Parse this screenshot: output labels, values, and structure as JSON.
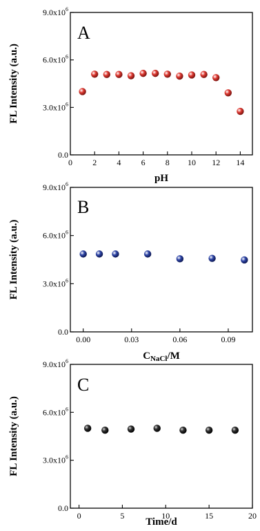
{
  "chart_data": [
    {
      "type": "scatter",
      "panel_label": "A",
      "xlabel": "pH",
      "ylabel": "FL Intensity (a.u.)",
      "xlim": [
        0,
        15
      ],
      "ylim": [
        0,
        9000000
      ],
      "xticks": [
        "0",
        "2",
        "4",
        "6",
        "8",
        "10",
        "12",
        "14"
      ],
      "xtick_values": [
        0,
        2,
        4,
        6,
        8,
        10,
        12,
        14
      ],
      "yticks": [
        {
          "mantissa": "0.0",
          "exp": ""
        },
        {
          "mantissa": "3.0x10",
          "exp": "6"
        },
        {
          "mantissa": "6.0x10",
          "exp": "6"
        },
        {
          "mantissa": "9.0x10",
          "exp": "6"
        }
      ],
      "ytick_values": [
        0,
        3000000,
        6000000,
        9000000
      ],
      "marker_color": "#e03a32",
      "x": [
        1,
        2,
        3,
        4,
        5,
        6,
        7,
        8,
        9,
        10,
        11,
        12,
        13,
        14
      ],
      "y": [
        4000000,
        5100000,
        5080000,
        5080000,
        5000000,
        5150000,
        5150000,
        5100000,
        4980000,
        5050000,
        5080000,
        4880000,
        3920000,
        2750000
      ]
    },
    {
      "type": "scatter",
      "panel_label": "B",
      "xlabel_main": "C",
      "xlabel_sub": "NaCl",
      "xlabel_tail": "/M",
      "ylabel": "FL Intensity (a.u.)",
      "xlim": [
        -0.008,
        0.105
      ],
      "ylim": [
        0,
        9000000
      ],
      "xticks": [
        "0.00",
        "0.03",
        "0.06",
        "0.09"
      ],
      "xtick_values": [
        0,
        0.03,
        0.06,
        0.09
      ],
      "yticks": [
        {
          "mantissa": "0.0",
          "exp": ""
        },
        {
          "mantissa": "3.0x10",
          "exp": "6"
        },
        {
          "mantissa": "6.0x10",
          "exp": "6"
        },
        {
          "mantissa": "9.0x10",
          "exp": "6"
        }
      ],
      "ytick_values": [
        0,
        3000000,
        6000000,
        9000000
      ],
      "marker_color": "#2f46a8",
      "x": [
        0,
        0.01,
        0.02,
        0.04,
        0.06,
        0.08,
        0.1
      ],
      "y": [
        4850000,
        4850000,
        4850000,
        4850000,
        4550000,
        4580000,
        4480000
      ]
    },
    {
      "type": "scatter",
      "panel_label": "C",
      "xlabel": "Time/d",
      "ylabel": "FL Intensity (a.u.)",
      "xlim": [
        -1,
        20
      ],
      "ylim": [
        0,
        9000000
      ],
      "xticks": [
        "0",
        "5",
        "10",
        "15",
        "20"
      ],
      "xtick_values": [
        0,
        5,
        10,
        15,
        20
      ],
      "yticks": [
        {
          "mantissa": "0.0",
          "exp": ""
        },
        {
          "mantissa": "3.0x10",
          "exp": "6"
        },
        {
          "mantissa": "6.0x10",
          "exp": "6"
        },
        {
          "mantissa": "9.0x10",
          "exp": "6"
        }
      ],
      "ytick_values": [
        0,
        3000000,
        6000000,
        9000000
      ],
      "marker_color": "#111111",
      "x": [
        1,
        3,
        6,
        9,
        12,
        15,
        18
      ],
      "y": [
        5000000,
        4880000,
        4950000,
        5000000,
        4880000,
        4880000,
        4880000
      ]
    }
  ]
}
